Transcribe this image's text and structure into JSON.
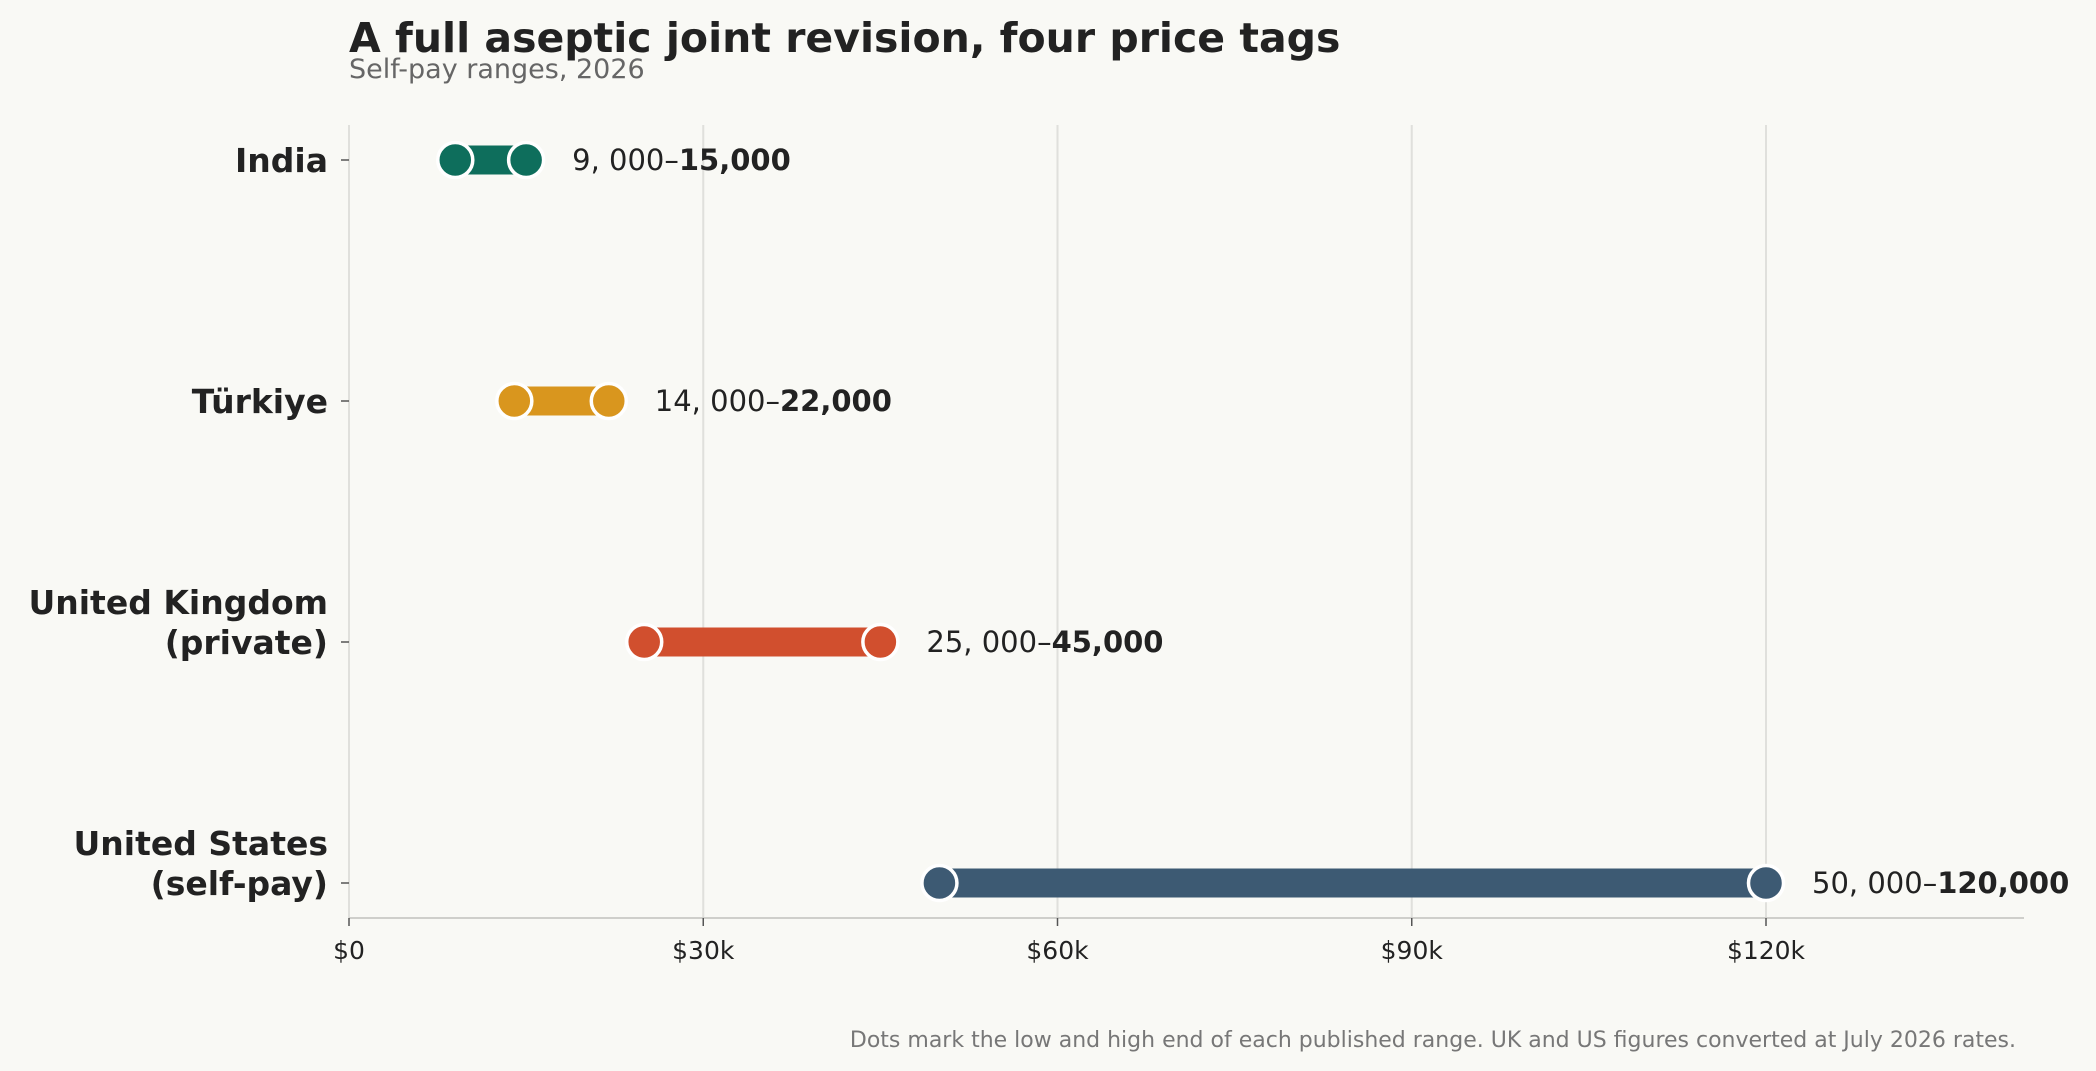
{
  "chart_data": {
    "type": "range",
    "title": "A full aseptic joint revision, four price tags",
    "subtitle": "Self-pay ranges, 2026",
    "footnote": "Dots mark the low and high end of each published range. UK and US figures converted at July 2026 rates.",
    "x_ticks": [
      {
        "value": 0,
        "label": "$0"
      },
      {
        "value": 30000,
        "label": "$30k"
      },
      {
        "value": 60000,
        "label": "$60k"
      },
      {
        "value": 90000,
        "label": "$90k"
      },
      {
        "value": 120000,
        "label": "$120k"
      }
    ],
    "xlim": [
      0,
      142000
    ],
    "grid": "vertical",
    "series": [
      {
        "label": [
          "India"
        ],
        "low": 9000,
        "high": 15000,
        "low_text": "9, 000–",
        "high_text": "15,000",
        "color": "#0e6e5c"
      },
      {
        "label": [
          "Türkiye"
        ],
        "low": 14000,
        "high": 22000,
        "low_text": "14, 000–",
        "high_text": "22,000",
        "color": "#d9961e"
      },
      {
        "label": [
          "United Kingdom",
          "(private)"
        ],
        "low": 25000,
        "high": 45000,
        "low_text": "25, 000–",
        "high_text": "45,000",
        "color": "#d14f2e"
      },
      {
        "label": [
          "United States",
          "(self-pay)"
        ],
        "low": 50000,
        "high": 120000,
        "low_text": "50, 000–",
        "high_text": "120,000",
        "color": "#3d5a73"
      }
    ]
  }
}
